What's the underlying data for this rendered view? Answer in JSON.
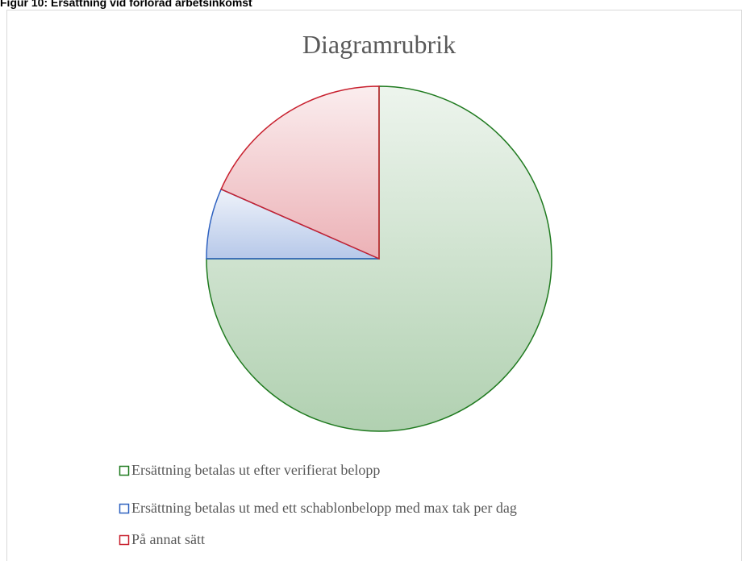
{
  "header": {
    "title": "Figur 10: Ersättning vid förlorad arbetsinkomst"
  },
  "chart_data": {
    "type": "pie",
    "title": "Diagramrubrik",
    "categories": [
      "Ersättning betalas ut efter verifierat belopp",
      "Ersättning betalas ut med ett schablonbelopp med max tak per dag",
      "På annat sätt"
    ],
    "values": [
      75,
      6.6,
      18.4
    ],
    "colors": [
      "#1f7a1f",
      "#2f62c0",
      "#c8202e"
    ],
    "legend": "bottom"
  }
}
